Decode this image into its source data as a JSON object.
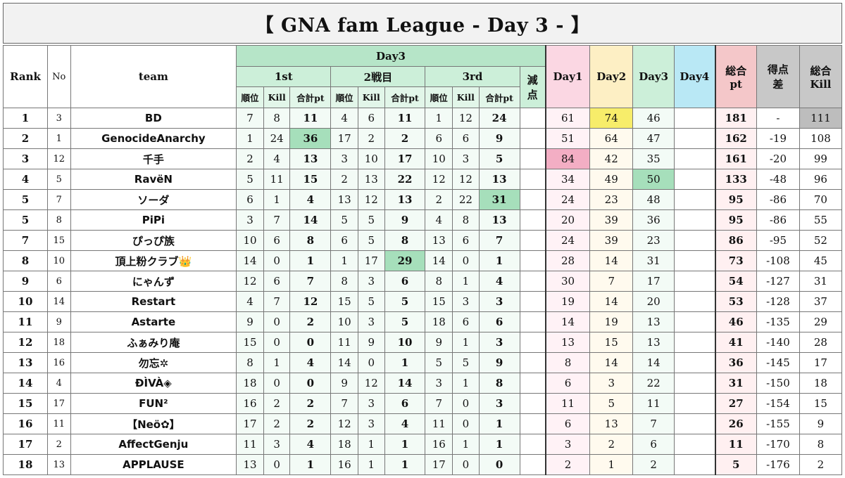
{
  "title": "【 GNA fam League - Day 3 - 】",
  "headers": {
    "rank": "Rank",
    "no": "No",
    "team": "team",
    "day3": "Day3",
    "game1": "1st",
    "game2": "2戦目",
    "game3": "3rd",
    "penalty": "減点",
    "sub_place": "順位",
    "sub_kill": "Kill",
    "sub_pt": "合計pt",
    "day1": "Day1",
    "day2": "Day2",
    "day3_total": "Day3",
    "day4": "Day4",
    "total_pt": "総合pt",
    "diff": "得点差",
    "total_kill": "総合Kill"
  },
  "rows": [
    {
      "rank": "1",
      "no": "3",
      "team": "BD",
      "g1": [
        "7",
        "8",
        "11"
      ],
      "g2": [
        "4",
        "6",
        "11"
      ],
      "g3": [
        "1",
        "12",
        "24"
      ],
      "penalty": "",
      "day1": "61",
      "day2": "74",
      "day3": "46",
      "day4": "",
      "total": "181",
      "diff": "-",
      "kill": "111"
    },
    {
      "rank": "2",
      "no": "1",
      "team": "GenocideAnarchy",
      "g1": [
        "1",
        "24",
        "36"
      ],
      "g2": [
        "17",
        "2",
        "2"
      ],
      "g3": [
        "6",
        "6",
        "9"
      ],
      "penalty": "",
      "day1": "51",
      "day2": "64",
      "day3": "47",
      "day4": "",
      "total": "162",
      "diff": "-19",
      "kill": "108"
    },
    {
      "rank": "3",
      "no": "12",
      "team": "千手",
      "g1": [
        "2",
        "4",
        "13"
      ],
      "g2": [
        "3",
        "10",
        "17"
      ],
      "g3": [
        "10",
        "3",
        "5"
      ],
      "penalty": "",
      "day1": "84",
      "day2": "42",
      "day3": "35",
      "day4": "",
      "total": "161",
      "diff": "-20",
      "kill": "99"
    },
    {
      "rank": "4",
      "no": "5",
      "team": "RavëN",
      "g1": [
        "5",
        "11",
        "15"
      ],
      "g2": [
        "2",
        "13",
        "22"
      ],
      "g3": [
        "12",
        "12",
        "13"
      ],
      "penalty": "",
      "day1": "34",
      "day2": "49",
      "day3": "50",
      "day4": "",
      "total": "133",
      "diff": "-48",
      "kill": "96"
    },
    {
      "rank": "5",
      "no": "7",
      "team": "ソーダ",
      "g1": [
        "6",
        "1",
        "4"
      ],
      "g2": [
        "13",
        "12",
        "13"
      ],
      "g3": [
        "2",
        "22",
        "31"
      ],
      "penalty": "",
      "day1": "24",
      "day2": "23",
      "day3": "48",
      "day4": "",
      "total": "95",
      "diff": "-86",
      "kill": "70"
    },
    {
      "rank": "5",
      "no": "8",
      "team": "PiPi",
      "g1": [
        "3",
        "7",
        "14"
      ],
      "g2": [
        "5",
        "5",
        "9"
      ],
      "g3": [
        "4",
        "8",
        "13"
      ],
      "penalty": "",
      "day1": "20",
      "day2": "39",
      "day3": "36",
      "day4": "",
      "total": "95",
      "diff": "-86",
      "kill": "55"
    },
    {
      "rank": "7",
      "no": "15",
      "team": "ぴっぴ族",
      "g1": [
        "10",
        "6",
        "8"
      ],
      "g2": [
        "6",
        "5",
        "8"
      ],
      "g3": [
        "13",
        "6",
        "7"
      ],
      "penalty": "",
      "day1": "24",
      "day2": "39",
      "day3": "23",
      "day4": "",
      "total": "86",
      "diff": "-95",
      "kill": "52"
    },
    {
      "rank": "8",
      "no": "10",
      "team": "頂上粉クラブ👑",
      "g1": [
        "14",
        "0",
        "1"
      ],
      "g2": [
        "1",
        "17",
        "29"
      ],
      "g3": [
        "14",
        "0",
        "1"
      ],
      "penalty": "",
      "day1": "28",
      "day2": "14",
      "day3": "31",
      "day4": "",
      "total": "73",
      "diff": "-108",
      "kill": "45"
    },
    {
      "rank": "9",
      "no": "6",
      "team": "にゃんず",
      "g1": [
        "12",
        "6",
        "7"
      ],
      "g2": [
        "8",
        "3",
        "6"
      ],
      "g3": [
        "8",
        "1",
        "4"
      ],
      "penalty": "",
      "day1": "30",
      "day2": "7",
      "day3": "17",
      "day4": "",
      "total": "54",
      "diff": "-127",
      "kill": "31"
    },
    {
      "rank": "10",
      "no": "14",
      "team": "Restart",
      "g1": [
        "4",
        "7",
        "12"
      ],
      "g2": [
        "15",
        "5",
        "5"
      ],
      "g3": [
        "15",
        "3",
        "3"
      ],
      "penalty": "",
      "day1": "19",
      "day2": "14",
      "day3": "20",
      "day4": "",
      "total": "53",
      "diff": "-128",
      "kill": "37"
    },
    {
      "rank": "11",
      "no": "9",
      "team": "Astarte",
      "g1": [
        "9",
        "0",
        "2"
      ],
      "g2": [
        "10",
        "3",
        "5"
      ],
      "g3": [
        "18",
        "6",
        "6"
      ],
      "penalty": "",
      "day1": "14",
      "day2": "19",
      "day3": "13",
      "day4": "",
      "total": "46",
      "diff": "-135",
      "kill": "29"
    },
    {
      "rank": "12",
      "no": "18",
      "team": "ふぁみり庵",
      "g1": [
        "15",
        "0",
        "0"
      ],
      "g2": [
        "11",
        "9",
        "10"
      ],
      "g3": [
        "9",
        "1",
        "3"
      ],
      "penalty": "",
      "day1": "13",
      "day2": "15",
      "day3": "13",
      "day4": "",
      "total": "41",
      "diff": "-140",
      "kill": "28"
    },
    {
      "rank": "13",
      "no": "16",
      "team": "勿忘✲",
      "g1": [
        "8",
        "1",
        "4"
      ],
      "g2": [
        "14",
        "0",
        "1"
      ],
      "g3": [
        "5",
        "5",
        "9"
      ],
      "penalty": "",
      "day1": "8",
      "day2": "14",
      "day3": "14",
      "day4": "",
      "total": "36",
      "diff": "-145",
      "kill": "17"
    },
    {
      "rank": "14",
      "no": "4",
      "team": "ĐÌVÀ◈",
      "g1": [
        "18",
        "0",
        "0"
      ],
      "g2": [
        "9",
        "12",
        "14"
      ],
      "g3": [
        "3",
        "1",
        "8"
      ],
      "penalty": "",
      "day1": "6",
      "day2": "3",
      "day3": "22",
      "day4": "",
      "total": "31",
      "diff": "-150",
      "kill": "18"
    },
    {
      "rank": "15",
      "no": "17",
      "team": "FUN²",
      "g1": [
        "16",
        "2",
        "2"
      ],
      "g2": [
        "7",
        "3",
        "6"
      ],
      "g3": [
        "7",
        "0",
        "3"
      ],
      "penalty": "",
      "day1": "11",
      "day2": "5",
      "day3": "11",
      "day4": "",
      "total": "27",
      "diff": "-154",
      "kill": "15"
    },
    {
      "rank": "16",
      "no": "11",
      "team": "【Neö✿】",
      "g1": [
        "17",
        "2",
        "2"
      ],
      "g2": [
        "12",
        "3",
        "4"
      ],
      "g3": [
        "11",
        "0",
        "1"
      ],
      "penalty": "",
      "day1": "6",
      "day2": "13",
      "day3": "7",
      "day4": "",
      "total": "26",
      "diff": "-155",
      "kill": "9"
    },
    {
      "rank": "17",
      "no": "2",
      "team": "AffectGenju",
      "g1": [
        "11",
        "3",
        "4"
      ],
      "g2": [
        "18",
        "1",
        "1"
      ],
      "g3": [
        "16",
        "1",
        "1"
      ],
      "penalty": "",
      "day1": "3",
      "day2": "2",
      "day3": "6",
      "day4": "",
      "total": "11",
      "diff": "-170",
      "kill": "8"
    },
    {
      "rank": "18",
      "no": "13",
      "team": "APPLAUSE",
      "g1": [
        "13",
        "0",
        "1"
      ],
      "g2": [
        "16",
        "1",
        "1"
      ],
      "g3": [
        "17",
        "0",
        "0"
      ],
      "penalty": "",
      "day1": "2",
      "day2": "1",
      "day3": "2",
      "day4": "",
      "total": "5",
      "diff": "-176",
      "kill": "2"
    }
  ],
  "highlights": {
    "top_game1_pt_row": 1,
    "top_game2_pt_row": 7,
    "top_game3_pt_row": 4,
    "top_day1_row": 2,
    "top_day2_row": 0,
    "top_day3_row": 3,
    "top_kill_row": 0,
    "green": "#a6dfbb",
    "yellow": "#f7ed6a",
    "pink": "#f3aec4",
    "gray": "#bdbdbd"
  }
}
